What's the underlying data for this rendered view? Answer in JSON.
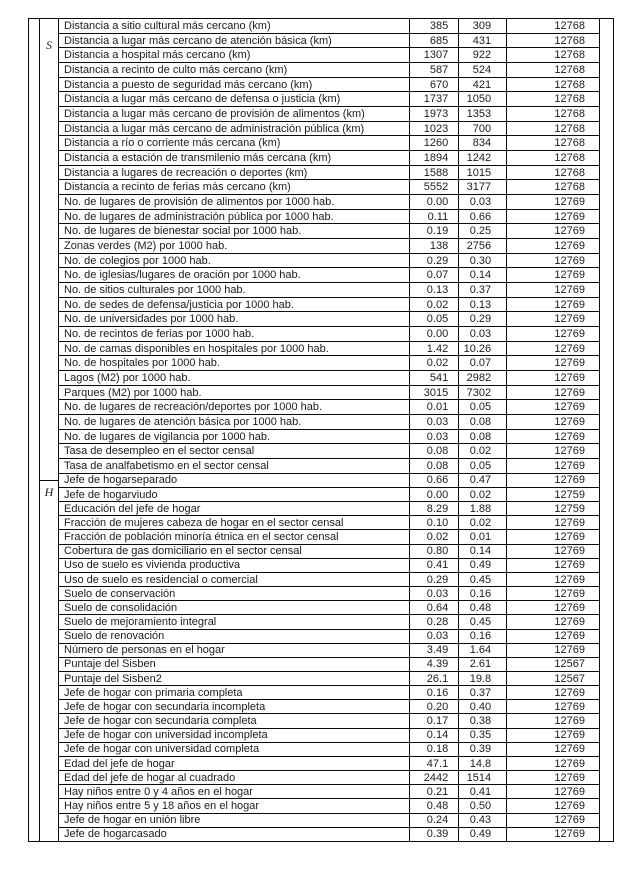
{
  "page": {
    "background_color": "#ffffff",
    "text_color": "#1c1c22",
    "border_color": "#0a0a0a"
  },
  "table": {
    "sections": [
      {
        "group_label": "S",
        "rows": [
          {
            "name": "Distancia a sitio cultural más cercano (km)",
            "mean": "385",
            "sd": "309",
            "n": "12768"
          },
          {
            "name": "Distancia a lugar más cercano de atención básica (km)",
            "mean": "685",
            "sd": "431",
            "n": "12768"
          },
          {
            "name": "Distancia a hospital más cercano (km)",
            "mean": "1307",
            "sd": "922",
            "n": "12768"
          },
          {
            "name": "Distancia a recinto de culto más cercano (km)",
            "mean": "587",
            "sd": "524",
            "n": "12768"
          },
          {
            "name": "Distancia a puesto de seguridad más cercano (km)",
            "mean": "670",
            "sd": "421",
            "n": "12768"
          },
          {
            "name": "Distancia a lugar más cercano de defensa o justicia (km)",
            "mean": "1737",
            "sd": "1050",
            "n": "12768"
          },
          {
            "name": "Distancia a lugar más cercano de provisión de alimentos (km)",
            "mean": "1973",
            "sd": "1353",
            "n": "12768"
          },
          {
            "name": "Distancia a lugar más cercano de administración pública (km)",
            "mean": "1023",
            "sd": "700",
            "n": "12768"
          },
          {
            "name": "Distancia a río o corriente más cercana (km)",
            "mean": "1260",
            "sd": "834",
            "n": "12768"
          },
          {
            "name": "Distancia a estación de transmilenio más cercana (km)",
            "mean": "1894",
            "sd": "1242",
            "n": "12768"
          },
          {
            "name": "Distancia a lugares de recreación o deportes (km)",
            "mean": "1588",
            "sd": "1015",
            "n": "12768"
          },
          {
            "name": "Distancia a recinto de ferias más cercano (km)",
            "mean": "5552",
            "sd": "3177",
            "n": "12768"
          },
          {
            "name": "No. de lugares de provisión de alimentos por 1000 hab.",
            "mean": "0.00",
            "sd": "0.03",
            "n": "12769"
          },
          {
            "name": "No. de lugares de administración pública por 1000 hab.",
            "mean": "0.11",
            "sd": "0.66",
            "n": "12769"
          },
          {
            "name": "No. de lugares de bienestar social por 1000 hab.",
            "mean": "0.19",
            "sd": "0.25",
            "n": "12769"
          },
          {
            "name": "Zonas verdes (M2) por 1000 hab.",
            "mean": "138",
            "sd": "2756",
            "n": "12769"
          },
          {
            "name": "No. de colegios por 1000 hab.",
            "mean": "0.29",
            "sd": "0.30",
            "n": "12769"
          },
          {
            "name": "No. de iglesias/lugares de oración por 1000 hab.",
            "mean": "0.07",
            "sd": "0.14",
            "n": "12769"
          },
          {
            "name": "No. de sitios culturales por 1000 hab.",
            "mean": "0.13",
            "sd": "0.37",
            "n": "12769"
          },
          {
            "name": "No. de sedes de defensa/justicia por 1000 hab.",
            "mean": "0.02",
            "sd": "0.13",
            "n": "12769"
          },
          {
            "name": "No. de universidades por 1000 hab.",
            "mean": "0.05",
            "sd": "0.29",
            "n": "12769"
          },
          {
            "name": "No. de recintos de ferias por 1000 hab.",
            "mean": "0.00",
            "sd": "0.03",
            "n": "12769"
          },
          {
            "name": "No. de camas disponibles en hospitales por 1000 hab.",
            "mean": "1.42",
            "sd": "10.26",
            "n": "12769"
          },
          {
            "name": "No. de hospitales por 1000 hab.",
            "mean": "0.02",
            "sd": "0.07",
            "n": "12769"
          },
          {
            "name": "Lagos (M2) por 1000 hab.",
            "mean": "541",
            "sd": "2982",
            "n": "12769"
          },
          {
            "name": "Parques (M2) por 1000 hab.",
            "mean": "3015",
            "sd": "7302",
            "n": "12769"
          },
          {
            "name": "No. de lugares de recreación/deportes por 1000 hab.",
            "mean": "0.01",
            "sd": "0.05",
            "n": "12769"
          },
          {
            "name": "No. de lugares de atención básica por 1000 hab.",
            "mean": "0.03",
            "sd": "0.08",
            "n": "12769"
          },
          {
            "name": "No. de lugares de vigilancia por 1000 hab.",
            "mean": "0.03",
            "sd": "0.08",
            "n": "12769"
          },
          {
            "name": "Tasa de desempleo en el sector censal",
            "mean": "0.08",
            "sd": "0.02",
            "n": "12769"
          },
          {
            "name": "Tasa de analfabetismo en el sector censal",
            "mean": "0.08",
            "sd": "0.05",
            "n": "12769"
          }
        ]
      },
      {
        "group_label": "H",
        "rows": [
          {
            "name": "Jefe de hogarseparado",
            "mean": "0.66",
            "sd": "0.47",
            "n": "12769"
          },
          {
            "name": "Jefe de hogarviudo",
            "mean": "0.00",
            "sd": "0.02",
            "n": "12759"
          },
          {
            "name": "Educación del jefe de hogar",
            "mean": "8.29",
            "sd": "1.88",
            "n": "12759"
          },
          {
            "name": "Fracción de mujeres cabeza de hogar en el sector censal",
            "mean": "0.10",
            "sd": "0.02",
            "n": "12769"
          },
          {
            "name": "Fracción de población minoría étnica en el sector censal",
            "mean": "0.02",
            "sd": "0.01",
            "n": "12769"
          },
          {
            "name": "Cobertura de gas domiciliario en el sector censal",
            "mean": "0.80",
            "sd": "0.14",
            "n": "12769"
          },
          {
            "name": "Uso de suelo es vivienda productiva",
            "mean": "0.41",
            "sd": "0.49",
            "n": "12769"
          },
          {
            "name": "Uso de suelo es residencial o comercial",
            "mean": "0.29",
            "sd": "0.45",
            "n": "12769"
          },
          {
            "name": "Suelo de conservación",
            "mean": "0.03",
            "sd": "0.16",
            "n": "12769"
          },
          {
            "name": "Suelo de consolidación",
            "mean": "0.64",
            "sd": "0.48",
            "n": "12769"
          },
          {
            "name": "Suelo de mejoramiento integral",
            "mean": "0.28",
            "sd": "0.45",
            "n": "12769"
          },
          {
            "name": "Suelo de renovación",
            "mean": "0.03",
            "sd": "0.16",
            "n": "12769"
          },
          {
            "name": "Número de personas en el hogar",
            "mean": "3.49",
            "sd": "1.64",
            "n": "12769"
          },
          {
            "name": "Puntaje del Sisben",
            "mean": "4.39",
            "sd": "2.61",
            "n": "12567"
          },
          {
            "name": "Puntaje del Sisben2",
            "mean": "26.1",
            "sd": "19.8",
            "n": "12567"
          },
          {
            "name": "Jefe de hogar con primaria completa",
            "mean": "0.16",
            "sd": "0.37",
            "n": "12769"
          },
          {
            "name": "Jefe de hogar con secundaria incompleta",
            "mean": "0.20",
            "sd": "0.40",
            "n": "12769"
          },
          {
            "name": "Jefe de hogar con secundaria completa",
            "mean": "0.17",
            "sd": "0.38",
            "n": "12769"
          },
          {
            "name": "Jefe de hogar con universidad incompleta",
            "mean": "0.14",
            "sd": "0.35",
            "n": "12769"
          },
          {
            "name": "Jefe de hogar con universidad completa",
            "mean": "0.18",
            "sd": "0.39",
            "n": "12769"
          },
          {
            "name": "Edad del jefe de hogar",
            "mean": "47.1",
            "sd": "14.8",
            "n": "12769"
          },
          {
            "name": "Edad del jefe de hogar al cuadrado",
            "mean": "2442",
            "sd": "1514",
            "n": "12769"
          },
          {
            "name": "Hay niños entre 0 y 4 años en el hogar",
            "mean": "0.21",
            "sd": "0.41",
            "n": "12769"
          },
          {
            "name": "Hay niños entre 5 y 18 años en el hogar",
            "mean": "0.48",
            "sd": "0.50",
            "n": "12769"
          },
          {
            "name": "Jefe de hogar en unión libre",
            "mean": "0.24",
            "sd": "0.43",
            "n": "12769"
          },
          {
            "name": "Jefe de hogarcasado",
            "mean": "0.39",
            "sd": "0.49",
            "n": "12769"
          }
        ]
      }
    ]
  }
}
